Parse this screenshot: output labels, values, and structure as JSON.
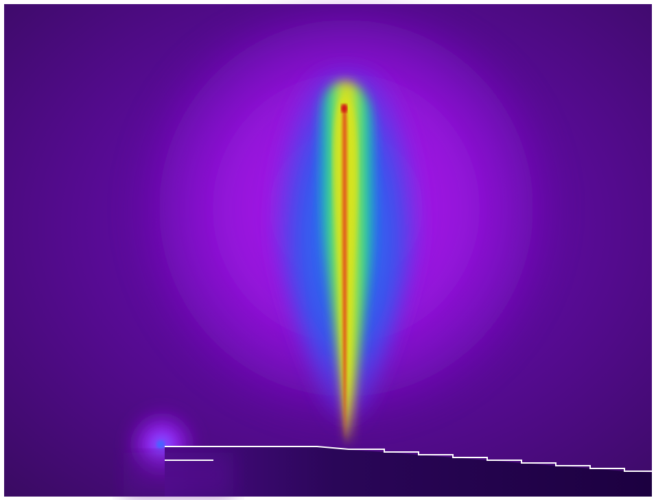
{
  "image": {
    "kind": "field-intensity-simulation",
    "colormap": [
      "#3e0f63",
      "#6a0aa5",
      "#9a12e0",
      "#3c48ef",
      "#1a8fe8",
      "#14c8a8",
      "#6ee04a",
      "#d7e91d",
      "#f0a21a",
      "#e04a1a",
      "#d01818"
    ],
    "colors": {
      "background_far": "#3a0b63",
      "background_mid": "#5a0c96",
      "halo_outer": "#8d12d6",
      "halo_inner": "#b122e6",
      "blue_band": "#2f58ee",
      "green_band": "#3fe06a",
      "yellow_band": "#d7e91d",
      "core_red": "#d4261a",
      "substrate": "#200045",
      "edge_line": "#ffffff"
    },
    "features": [
      {
        "name": "vertical-emission-beam"
      },
      {
        "name": "stepped-substrate-boundary"
      },
      {
        "name": "left-electrode-spark"
      },
      {
        "name": "short-edge-segment"
      }
    ]
  }
}
